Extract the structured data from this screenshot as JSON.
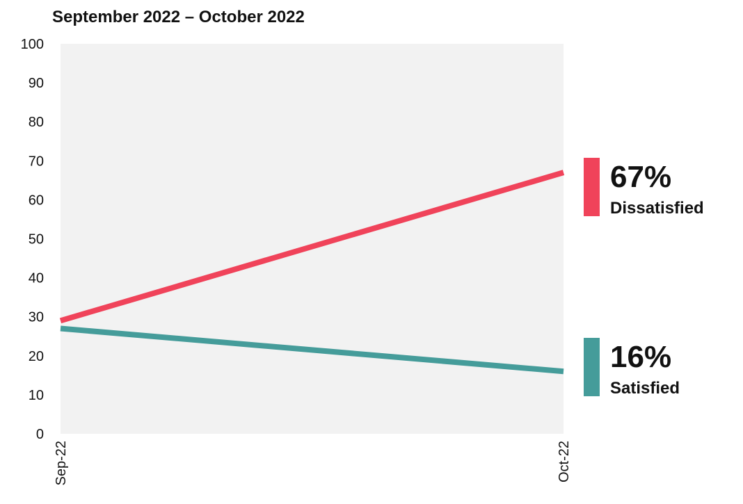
{
  "chart_data": {
    "type": "line",
    "title": "September 2022 – October 2022",
    "categories": [
      "Sep-22",
      "Oct-22"
    ],
    "series": [
      {
        "name": "Dissatisfied",
        "color": "#f0435a",
        "values": [
          29,
          67
        ],
        "value_labels": [
          null,
          "67%"
        ]
      },
      {
        "name": "Satisfied",
        "color": "#459c9a",
        "values": [
          27,
          16
        ],
        "value_labels": [
          null,
          "16%"
        ]
      }
    ],
    "ylim": [
      0,
      100
    ],
    "yticks": [
      0,
      10,
      20,
      30,
      40,
      50,
      60,
      70,
      80,
      90,
      100
    ],
    "plot_background": "#f2f2f2"
  }
}
